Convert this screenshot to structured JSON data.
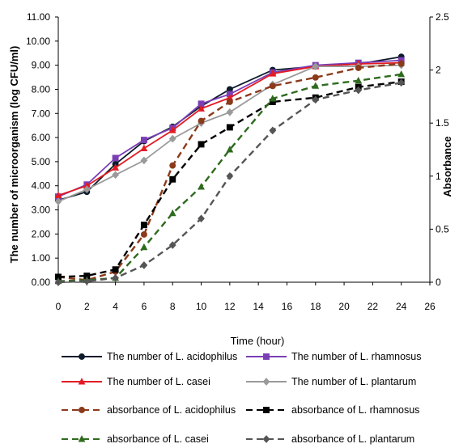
{
  "chart_data": {
    "type": "line",
    "x": [
      0,
      2,
      4,
      6,
      8,
      10,
      12,
      15,
      18,
      21,
      24
    ],
    "xlabel": "Time (hour)",
    "xticks": [
      "0",
      "2",
      "4",
      "6",
      "8",
      "10",
      "12",
      "14",
      "16",
      "18",
      "20",
      "22",
      "24",
      "26"
    ],
    "xlim": [
      0,
      26
    ],
    "ylabel": "The number of microorganism (log CFU/ml)",
    "ylim": [
      0,
      11
    ],
    "yticks": [
      "0.00",
      "1.00",
      "2.00",
      "3.00",
      "4.00",
      "5.00",
      "6.00",
      "7.00",
      "8.00",
      "9.00",
      "10.00",
      "11.00"
    ],
    "y2label": "Absorbance",
    "y2lim": [
      0,
      2.5
    ],
    "y2ticks": [
      "0",
      "0.5",
      "1",
      "1.5",
      "2",
      "2.5"
    ],
    "grid": false,
    "legend_position": "bottom",
    "series": [
      {
        "name": "The number of L. acidophilus",
        "axis": "left",
        "color": "#0d1b2a",
        "dash": "solid",
        "marker": "circle",
        "values": [
          3.4,
          3.75,
          4.9,
          5.85,
          6.45,
          7.3,
          8.0,
          8.8,
          8.95,
          9.05,
          9.35
        ]
      },
      {
        "name": "The number of L. rhamnosus",
        "axis": "left",
        "color": "#7b3fb4",
        "dash": "solid",
        "marker": "square",
        "values": [
          3.55,
          4.05,
          5.15,
          5.9,
          6.4,
          7.4,
          7.8,
          8.7,
          9.0,
          9.1,
          9.2
        ]
      },
      {
        "name": "The number of L. casei",
        "axis": "left",
        "color": "#e31b23",
        "dash": "solid",
        "marker": "triangle",
        "values": [
          3.6,
          4.0,
          4.75,
          5.55,
          6.3,
          7.2,
          7.65,
          8.65,
          8.95,
          9.05,
          9.1
        ]
      },
      {
        "name": "The number of L. plantarum",
        "axis": "left",
        "color": "#9a9a9a",
        "dash": "solid",
        "marker": "diamond",
        "values": [
          3.35,
          3.85,
          4.45,
          5.05,
          5.95,
          6.6,
          7.05,
          8.2,
          8.95,
          8.95,
          9.0
        ]
      },
      {
        "name": "absorbance of L. acidophilus",
        "axis": "right",
        "color": "#8b3a1a",
        "dash": "dashed",
        "marker": "circle",
        "values": [
          0.05,
          0.02,
          0.1,
          0.45,
          1.1,
          1.52,
          1.7,
          1.85,
          1.93,
          2.02,
          2.06
        ]
      },
      {
        "name": "absorbance of L. rhamnosus",
        "axis": "right",
        "color": "#000000",
        "dash": "dashed",
        "marker": "square",
        "values": [
          0.05,
          0.06,
          0.12,
          0.54,
          0.97,
          1.3,
          1.46,
          1.7,
          1.74,
          1.84,
          1.89
        ]
      },
      {
        "name": "absorbance of L. casei",
        "axis": "right",
        "color": "#2e6b1e",
        "dash": "dashed",
        "marker": "triangle",
        "values": [
          0.01,
          0.02,
          0.04,
          0.33,
          0.65,
          0.9,
          1.25,
          1.73,
          1.85,
          1.9,
          1.96
        ]
      },
      {
        "name": "absorbance of L. plantarum",
        "axis": "right",
        "color": "#555555",
        "dash": "dashed",
        "marker": "diamond",
        "values": [
          0.0,
          0.01,
          0.04,
          0.16,
          0.35,
          0.6,
          1.0,
          1.43,
          1.72,
          1.81,
          1.88
        ]
      }
    ]
  }
}
